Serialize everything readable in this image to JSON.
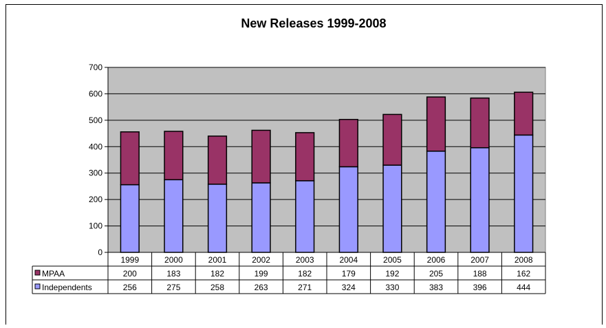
{
  "chart_data": {
    "type": "bar",
    "stacked": true,
    "title": "New Releases 1999-2008",
    "categories": [
      "1999",
      "2000",
      "2001",
      "2002",
      "2003",
      "2004",
      "2005",
      "2006",
      "2007",
      "2008"
    ],
    "series": [
      {
        "name": "Independents",
        "values": [
          256,
          275,
          258,
          263,
          271,
          324,
          330,
          383,
          396,
          444
        ]
      },
      {
        "name": "MPAA",
        "values": [
          200,
          183,
          182,
          199,
          182,
          179,
          192,
          205,
          188,
          162
        ]
      }
    ],
    "ylim": [
      0,
      700
    ],
    "yticks": [
      0,
      100,
      200,
      300,
      400,
      500,
      600,
      700
    ],
    "grid": true,
    "legend": "data-table-left",
    "colors": {
      "Independents": "#9999ff",
      "MPAA": "#993366",
      "plot_background": "#c0c0c0"
    }
  }
}
